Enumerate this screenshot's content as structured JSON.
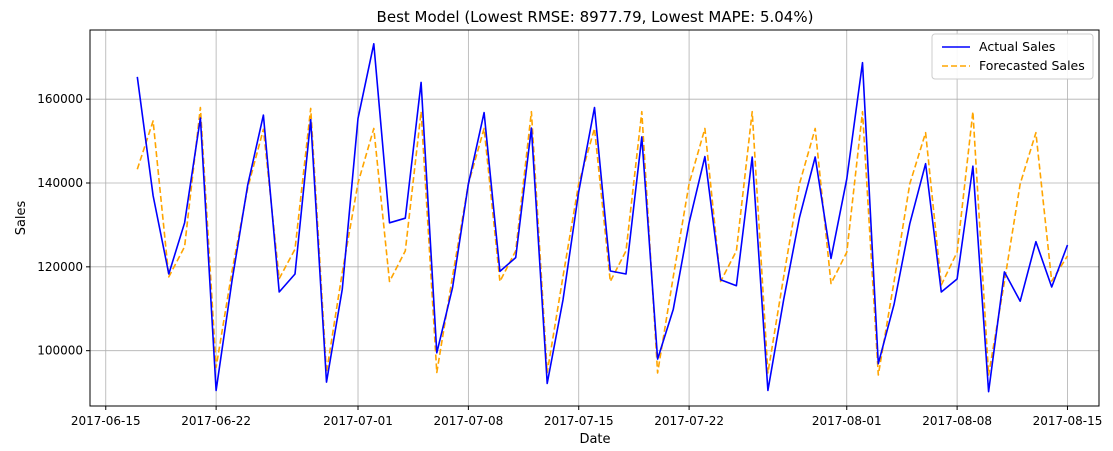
{
  "chart_data": {
    "type": "line",
    "title": "Best Model (Lowest RMSE: 8977.79, Lowest MAPE: 5.04%)",
    "xlabel": "Date",
    "ylabel": "Sales",
    "grid": true,
    "legend_position": "top-right",
    "x_start": "2017-06-17",
    "xlim": [
      "2017-06-14",
      "2017-08-17"
    ],
    "ylim": [
      86800,
      176500
    ],
    "x_ticks": [
      {
        "date": "2017-06-15",
        "label": "2017-06-15"
      },
      {
        "date": "2017-06-22",
        "label": "2017-06-22"
      },
      {
        "date": "2017-07-01",
        "label": "2017-07-01"
      },
      {
        "date": "2017-07-08",
        "label": "2017-07-08"
      },
      {
        "date": "2017-07-15",
        "label": "2017-07-15"
      },
      {
        "date": "2017-07-22",
        "label": "2017-07-22"
      },
      {
        "date": "2017-08-01",
        "label": "2017-08-01"
      },
      {
        "date": "2017-08-08",
        "label": "2017-08-08"
      },
      {
        "date": "2017-08-15",
        "label": "2017-08-15"
      }
    ],
    "y_ticks": [
      100000,
      120000,
      140000,
      160000
    ],
    "y_tick_labels": [
      "100000",
      "120000",
      "140000",
      "160000"
    ],
    "series": [
      {
        "name": "Actual Sales",
        "color": "#0000ff",
        "style": "solid",
        "values": [
          165300,
          137000,
          118300,
          130500,
          155500,
          90500,
          116500,
          139500,
          156200,
          114000,
          118300,
          155100,
          92500,
          114700,
          155400,
          173200,
          130500,
          131600,
          164000,
          99500,
          115100,
          139800,
          156800,
          118900,
          122200,
          153100,
          92200,
          112100,
          137900,
          158000,
          119000,
          118300,
          151000,
          98000,
          109900,
          130500,
          146300,
          116900,
          115500,
          146200,
          90500,
          112200,
          131800,
          146200,
          122000,
          141000,
          168700,
          96900,
          111000,
          130300,
          144600,
          114000,
          117100,
          144000,
          90200,
          118800,
          111800,
          126000,
          115200,
          125200
        ]
      },
      {
        "name": "Forecasted Sales",
        "color": "#ffa500",
        "style": "dashed",
        "values": [
          143300,
          154800,
          117600,
          124800,
          158000,
          96000,
          118800,
          138800,
          152800,
          117200,
          124200,
          157800,
          94800,
          118700,
          140000,
          153000,
          116500,
          123800,
          157000,
          94800,
          117800,
          139800,
          153000,
          116500,
          123800,
          157000,
          94800,
          117700,
          139800,
          153000,
          116500,
          123800,
          157000,
          94700,
          117700,
          139800,
          153000,
          116500,
          123800,
          157000,
          94700,
          117700,
          139800,
          153000,
          116000,
          123500,
          157000,
          94200,
          116400,
          139800,
          152000,
          115700,
          123500,
          157000,
          94200,
          116400,
          139800,
          152000,
          116600,
          122600
        ]
      }
    ]
  }
}
